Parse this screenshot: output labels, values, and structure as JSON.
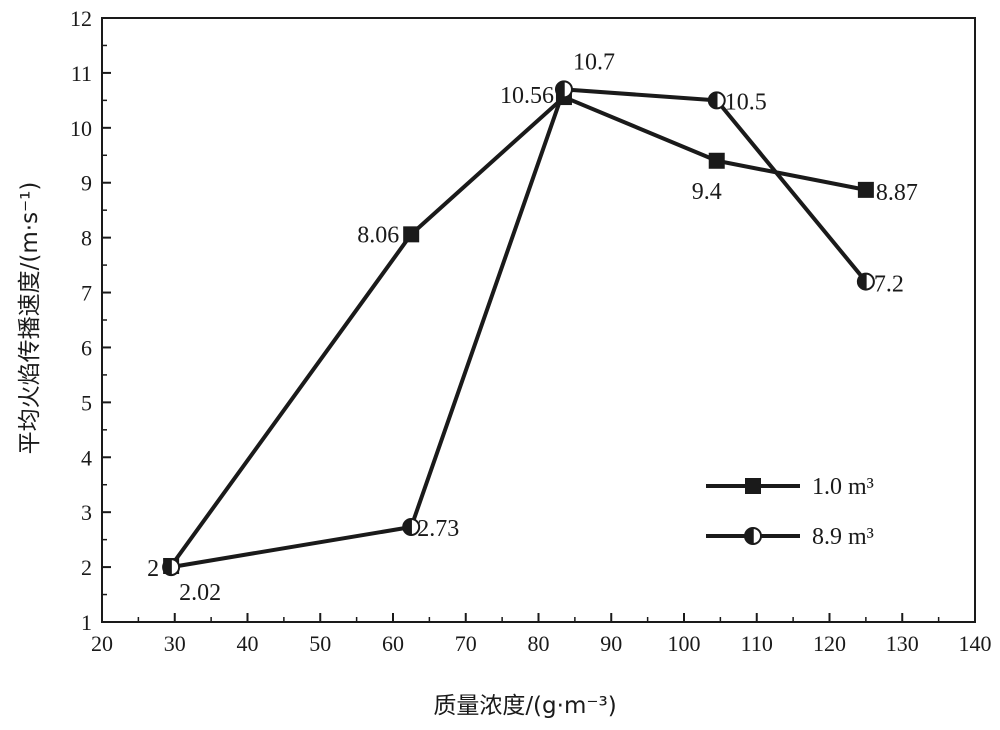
{
  "chart_data": {
    "type": "line",
    "xlabel": "质量浓度/(g·m⁻³)",
    "ylabel": "平均火焰传播速度/(m·s⁻¹)",
    "xlim": [
      20,
      140
    ],
    "ylim": [
      1,
      12
    ],
    "x_ticks": [
      20,
      30,
      40,
      50,
      60,
      70,
      80,
      90,
      100,
      110,
      120,
      130,
      140
    ],
    "y_ticks": [
      1,
      2,
      3,
      4,
      5,
      6,
      7,
      8,
      9,
      10,
      11,
      12
    ],
    "grid": false,
    "legend_position": "right, lower-middle",
    "series": [
      {
        "name": "1.0 m³",
        "marker": "filled-square",
        "color": "#1a1a1a",
        "x": [
          29.5,
          62.5,
          83.5,
          104.5,
          125
        ],
        "y": [
          2.02,
          8.06,
          10.56,
          9.4,
          8.87
        ],
        "labels": [
          "2.02",
          "8.06",
          "10.56",
          "9.4",
          "8.87"
        ]
      },
      {
        "name": "8.9 m³",
        "marker": "half-filled-circle",
        "color": "#1a1a1a",
        "x": [
          29.5,
          62.5,
          83.5,
          104.5,
          125
        ],
        "y": [
          2.0,
          2.73,
          10.7,
          10.5,
          7.2
        ],
        "labels": [
          "2",
          "2.73",
          "10.7",
          "10.5",
          "7.2"
        ]
      }
    ]
  }
}
